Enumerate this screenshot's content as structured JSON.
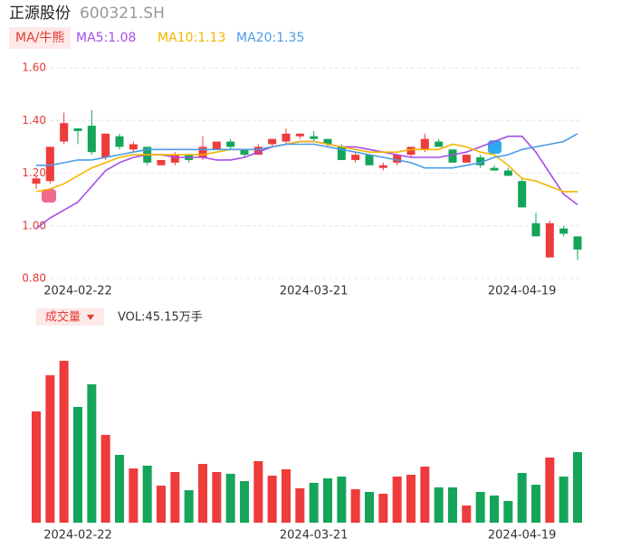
{
  "header": {
    "name": "正源股份",
    "code": "600321.SH",
    "ma_button": "MA/牛熊"
  },
  "chart_data": [
    {
      "type": "candlestick",
      "categories": [
        null,
        null,
        null,
        "2024-02-22",
        null,
        null,
        null,
        null,
        null,
        null,
        null,
        null,
        null,
        null,
        null,
        null,
        null,
        null,
        null,
        null,
        "2024-03-21",
        null,
        null,
        null,
        null,
        null,
        null,
        null,
        null,
        null,
        null,
        null,
        null,
        null,
        null,
        "2024-04-19",
        null,
        null,
        null,
        null
      ],
      "open": [
        1.16,
        1.17,
        1.32,
        1.37,
        1.38,
        1.26,
        1.34,
        1.29,
        1.3,
        1.23,
        1.24,
        1.27,
        1.26,
        1.29,
        1.32,
        1.29,
        1.27,
        1.31,
        1.32,
        1.34,
        1.34,
        1.33,
        1.3,
        1.25,
        1.27,
        1.22,
        1.24,
        1.27,
        1.29,
        1.32,
        1.29,
        1.24,
        1.26,
        1.22,
        1.21,
        1.17,
        1.01,
        0.88,
        0.99,
        0.96
      ],
      "close": [
        1.18,
        1.3,
        1.39,
        1.36,
        1.28,
        1.35,
        1.3,
        1.31,
        1.24,
        1.25,
        1.27,
        1.25,
        1.3,
        1.32,
        1.3,
        1.27,
        1.3,
        1.33,
        1.35,
        1.35,
        1.33,
        1.31,
        1.25,
        1.27,
        1.23,
        1.23,
        1.27,
        1.3,
        1.33,
        1.3,
        1.24,
        1.27,
        1.23,
        1.21,
        1.19,
        1.07,
        0.96,
        1.01,
        0.97,
        0.91
      ],
      "high": [
        1.19,
        1.3,
        1.43,
        1.37,
        1.44,
        1.35,
        1.35,
        1.32,
        1.3,
        1.25,
        1.28,
        1.27,
        1.34,
        1.32,
        1.33,
        1.29,
        1.31,
        1.33,
        1.37,
        1.35,
        1.36,
        1.33,
        1.31,
        1.28,
        1.27,
        1.24,
        1.27,
        1.3,
        1.35,
        1.33,
        1.29,
        1.27,
        1.27,
        1.23,
        1.22,
        1.18,
        1.05,
        1.02,
        1.0,
        0.96
      ],
      "low": [
        1.14,
        1.16,
        1.31,
        1.31,
        1.27,
        1.25,
        1.29,
        1.28,
        1.23,
        1.23,
        1.23,
        1.24,
        1.25,
        1.29,
        1.29,
        1.26,
        1.27,
        1.3,
        1.31,
        1.33,
        1.32,
        1.3,
        1.25,
        1.24,
        1.23,
        1.21,
        1.23,
        1.26,
        1.28,
        1.3,
        1.24,
        1.24,
        1.22,
        1.21,
        1.19,
        1.07,
        0.96,
        0.88,
        0.96,
        0.87
      ],
      "up_color": "#ee3b3b",
      "down_color": "#14a55a",
      "ylim": [
        0.8,
        1.6
      ],
      "yticks": [
        {
          "value": 0.8,
          "label": "0.80"
        },
        {
          "value": 1.0,
          "label": "1.00"
        },
        {
          "value": 1.2,
          "label": "1.20"
        },
        {
          "value": 1.4,
          "label": "1.40"
        },
        {
          "value": 1.6,
          "label": "1.60"
        }
      ],
      "grid": true,
      "series": [
        {
          "name": "MA5:1.08",
          "color": "#a54ee6",
          "values": [
            0.99,
            1.03,
            1.06,
            1.09,
            1.15,
            1.21,
            1.24,
            1.26,
            1.27,
            1.27,
            1.26,
            1.26,
            1.26,
            1.25,
            1.25,
            1.26,
            1.28,
            1.3,
            1.31,
            1.32,
            1.32,
            1.31,
            1.3,
            1.3,
            1.29,
            1.28,
            1.27,
            1.26,
            1.26,
            1.26,
            1.27,
            1.28,
            1.3,
            1.32,
            1.34,
            1.34,
            1.28,
            1.2,
            1.12,
            1.08
          ]
        },
        {
          "name": "MA10:1.13",
          "color": "#f4b400",
          "values": [
            1.13,
            1.14,
            1.16,
            1.19,
            1.22,
            1.24,
            1.26,
            1.27,
            1.27,
            1.27,
            1.27,
            1.27,
            1.27,
            1.28,
            1.29,
            1.29,
            1.29,
            1.3,
            1.31,
            1.32,
            1.32,
            1.31,
            1.3,
            1.29,
            1.28,
            1.28,
            1.28,
            1.29,
            1.29,
            1.29,
            1.31,
            1.3,
            1.28,
            1.27,
            1.23,
            1.18,
            1.17,
            1.15,
            1.13,
            1.13
          ]
        },
        {
          "name": "MA20:1.35",
          "color": "#4c9be8",
          "values": [
            1.23,
            1.23,
            1.24,
            1.25,
            1.25,
            1.26,
            1.27,
            1.28,
            1.29,
            1.29,
            1.29,
            1.29,
            1.29,
            1.29,
            1.29,
            1.29,
            1.29,
            1.3,
            1.31,
            1.31,
            1.31,
            1.3,
            1.29,
            1.28,
            1.27,
            1.26,
            1.25,
            1.24,
            1.22,
            1.22,
            1.22,
            1.23,
            1.24,
            1.26,
            1.27,
            1.29,
            1.3,
            1.31,
            1.32,
            1.35
          ]
        }
      ]
    },
    {
      "type": "bar",
      "title": "成交量",
      "categories": [
        null,
        null,
        null,
        "2024-02-22",
        null,
        null,
        null,
        null,
        null,
        null,
        null,
        null,
        null,
        null,
        null,
        null,
        null,
        null,
        null,
        null,
        "2024-03-21",
        null,
        null,
        null,
        null,
        null,
        null,
        null,
        null,
        null,
        null,
        null,
        null,
        null,
        null,
        "2024-04-19",
        null,
        null,
        null,
        null
      ],
      "series": [
        {
          "name": "VOL:45.15万手",
          "values": [
            71.2,
            94.4,
            103.6,
            74.1,
            88.6,
            56.2,
            43.4,
            34.7,
            36.5,
            23.7,
            32.4,
            20.8,
            37.6,
            32.4,
            31.3,
            26.6,
            39.4,
            30.1,
            34.2,
            22.0,
            25.5,
            28.4,
            29.5,
            21.4,
            19.7,
            18.5,
            29.5,
            30.7,
            35.9,
            22.6,
            22.6,
            11.0,
            19.7,
            17.4,
            13.9,
            31.8,
            24.3,
            41.7,
            29.5,
            45.15
          ]
        }
      ]
    }
  ]
}
